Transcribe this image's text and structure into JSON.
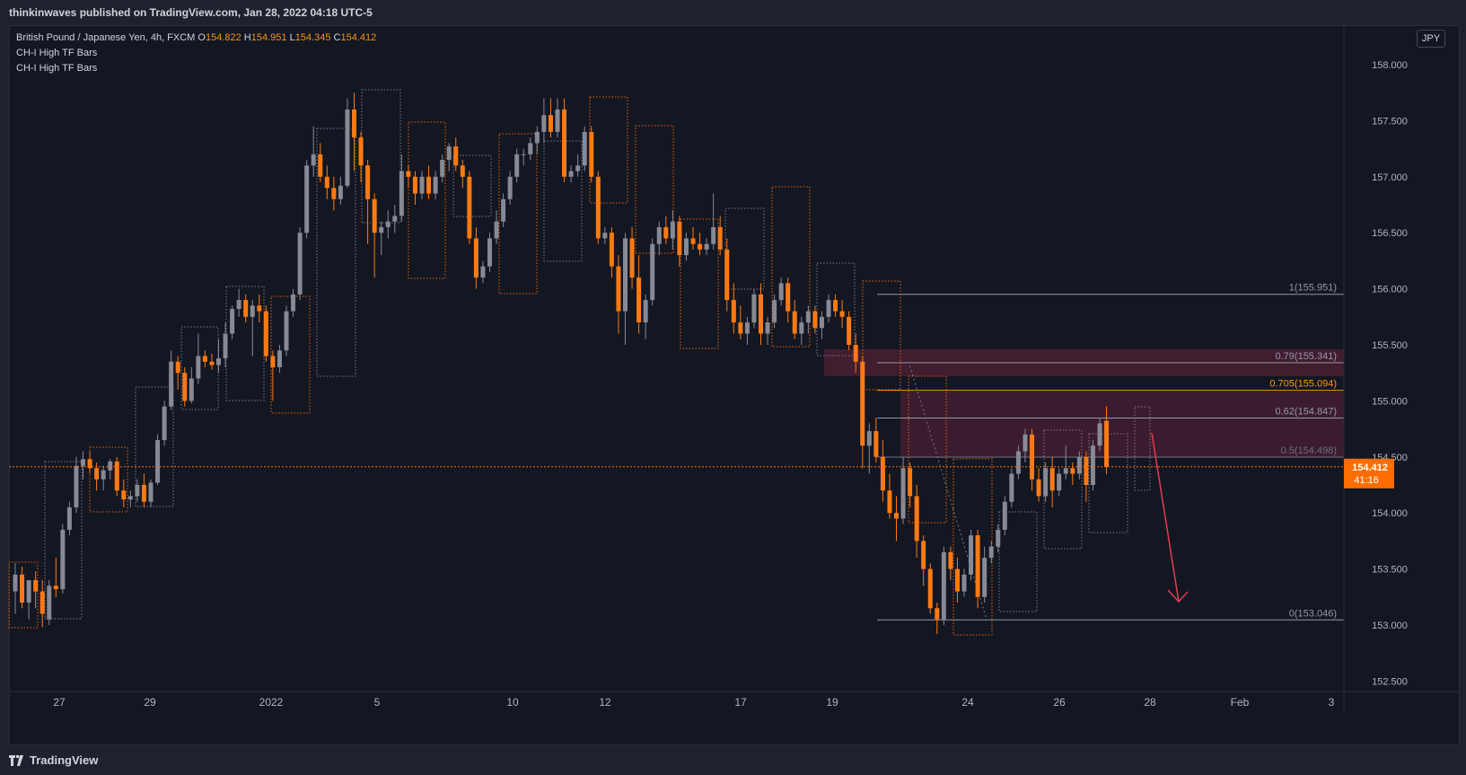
{
  "header": {
    "published_text": "thinkinwaves published on TradingView.com, Jan 28, 2022 04:18 UTC-5"
  },
  "legend": {
    "symbol": "British Pound / Japanese Yen, 4h, FXCM",
    "open_label": "O",
    "open": "154.822",
    "high_label": "H",
    "high": "154.951",
    "low_label": "L",
    "low": "154.345",
    "close_label": "C",
    "close": "154.412",
    "indicators": [
      "CH-I High TF Bars",
      "CH-I High TF Bars"
    ]
  },
  "currency_button": "JPY",
  "price_axis": {
    "labels": [
      "158.000",
      "157.500",
      "157.000",
      "156.500",
      "156.000",
      "155.500",
      "155.000",
      "154.500",
      "154.000",
      "153.500",
      "153.000",
      "152.500"
    ],
    "current_price": "154.412",
    "countdown": "41:16"
  },
  "time_axis": {
    "labels": [
      "27",
      "29",
      "2022",
      "5",
      "10",
      "12",
      "17",
      "19",
      "24",
      "26",
      "28",
      "Feb",
      "3"
    ]
  },
  "fib_levels": [
    {
      "label": "1(155.951)",
      "price": 155.951,
      "color": "#9598a1"
    },
    {
      "label": "0.79(155.341)",
      "price": 155.341,
      "color": "#9598a1"
    },
    {
      "label": "0.705(155.094)",
      "price": 155.094,
      "color": "#ff9800"
    },
    {
      "label": "0.62(154.847)",
      "price": 154.847,
      "color": "#9598a1"
    },
    {
      "label": "0.5(154.498)",
      "price": 154.498,
      "color": "#6b6f7a"
    },
    {
      "label": "0(153.046)",
      "price": 153.046,
      "color": "#9598a1"
    }
  ],
  "footer": {
    "brand": "TradingView"
  },
  "colors": {
    "bull": "#878a94",
    "bear": "#ff7a12",
    "background": "#131722",
    "zone": "#4a1f33",
    "arrow": "#e63950",
    "price_tag": "#ff6d00"
  },
  "chart_data": {
    "type": "candlestick",
    "title": "British Pound / Japanese Yen, 4h, FXCM",
    "ylim": [
      152.4,
      158.3
    ],
    "y_ticks": [
      152.5,
      153.0,
      153.5,
      154.0,
      154.5,
      155.0,
      155.5,
      156.0,
      156.5,
      157.0,
      157.5,
      158.0
    ],
    "x_ticks": [
      "27",
      "29",
      "2022",
      "5",
      "10",
      "12",
      "17",
      "19",
      "24",
      "26",
      "28",
      "Feb",
      "3"
    ],
    "current_price": 154.412,
    "ohlc": [
      [
        153.3,
        153.55,
        153.1,
        153.45
      ],
      [
        153.45,
        153.52,
        153.15,
        153.2
      ],
      [
        153.2,
        153.35,
        153.05,
        153.4
      ],
      [
        153.4,
        153.48,
        153.15,
        153.3
      ],
      [
        153.3,
        153.4,
        152.98,
        153.1
      ],
      [
        153.05,
        153.4,
        153.0,
        153.35
      ],
      [
        153.35,
        153.6,
        153.25,
        153.32
      ],
      [
        153.32,
        153.9,
        153.28,
        153.85
      ],
      [
        153.85,
        154.1,
        153.8,
        154.05
      ],
      [
        154.05,
        154.5,
        154.0,
        154.42
      ],
      [
        154.42,
        154.55,
        154.3,
        154.48
      ],
      [
        154.48,
        154.55,
        154.35,
        154.4
      ],
      [
        154.4,
        154.45,
        154.2,
        154.3
      ],
      [
        154.3,
        154.42,
        154.2,
        154.38
      ],
      [
        154.38,
        154.48,
        154.3,
        154.46
      ],
      [
        154.46,
        154.5,
        154.15,
        154.2
      ],
      [
        154.2,
        154.3,
        154.05,
        154.12
      ],
      [
        154.12,
        154.2,
        154.05,
        154.15
      ],
      [
        154.15,
        154.3,
        154.1,
        154.25
      ],
      [
        154.25,
        154.35,
        154.05,
        154.1
      ],
      [
        154.1,
        154.3,
        154.05,
        154.27
      ],
      [
        154.27,
        154.7,
        154.25,
        154.65
      ],
      [
        154.65,
        155.0,
        154.6,
        154.95
      ],
      [
        154.95,
        155.45,
        154.92,
        155.35
      ],
      [
        155.35,
        155.4,
        155.1,
        155.25
      ],
      [
        155.25,
        155.3,
        154.95,
        155.0
      ],
      [
        155.0,
        155.3,
        154.98,
        155.2
      ],
      [
        155.2,
        155.6,
        155.15,
        155.4
      ],
      [
        155.4,
        155.45,
        155.3,
        155.35
      ],
      [
        155.35,
        155.42,
        155.28,
        155.32
      ],
      [
        155.32,
        155.55,
        155.25,
        155.38
      ],
      [
        155.38,
        155.7,
        155.3,
        155.6
      ],
      [
        155.6,
        155.85,
        155.55,
        155.82
      ],
      [
        155.82,
        156.0,
        155.75,
        155.9
      ],
      [
        155.9,
        155.95,
        155.7,
        155.75
      ],
      [
        155.75,
        155.9,
        155.4,
        155.85
      ],
      [
        155.85,
        155.95,
        155.7,
        155.8
      ],
      [
        155.8,
        155.85,
        155.35,
        155.4
      ],
      [
        155.4,
        155.45,
        155.0,
        155.3
      ],
      [
        155.3,
        155.5,
        155.25,
        155.45
      ],
      [
        155.45,
        155.85,
        155.4,
        155.8
      ],
      [
        155.8,
        156.0,
        155.75,
        155.95
      ],
      [
        155.95,
        156.55,
        155.9,
        156.5
      ],
      [
        156.5,
        157.15,
        156.45,
        157.1
      ],
      [
        157.1,
        157.45,
        157.0,
        157.2
      ],
      [
        157.2,
        157.3,
        156.95,
        157.0
      ],
      [
        157.0,
        157.1,
        156.8,
        156.9
      ],
      [
        156.9,
        157.0,
        156.7,
        156.8
      ],
      [
        156.8,
        157.0,
        156.75,
        156.92
      ],
      [
        156.92,
        157.7,
        156.9,
        157.6
      ],
      [
        157.6,
        157.75,
        157.05,
        157.35
      ],
      [
        157.35,
        157.4,
        156.95,
        157.1
      ],
      [
        157.1,
        157.15,
        156.4,
        156.8
      ],
      [
        156.8,
        156.85,
        156.1,
        156.5
      ],
      [
        156.5,
        156.6,
        156.3,
        156.55
      ],
      [
        156.55,
        156.7,
        156.45,
        156.6
      ],
      [
        156.6,
        156.75,
        156.5,
        156.65
      ],
      [
        156.65,
        157.2,
        156.6,
        157.05
      ],
      [
        157.05,
        157.1,
        156.9,
        157.0
      ],
      [
        157.0,
        157.05,
        156.75,
        156.85
      ],
      [
        156.85,
        157.05,
        156.8,
        157.0
      ],
      [
        157.0,
        157.1,
        156.8,
        156.85
      ],
      [
        156.85,
        157.05,
        156.8,
        157.0
      ],
      [
        157.0,
        157.2,
        156.95,
        157.15
      ],
      [
        157.15,
        157.3,
        157.05,
        157.27
      ],
      [
        157.27,
        157.35,
        157.05,
        157.1
      ],
      [
        157.1,
        157.15,
        156.9,
        157.0
      ],
      [
        157.0,
        157.05,
        156.4,
        156.45
      ],
      [
        156.45,
        156.55,
        156.0,
        156.1
      ],
      [
        156.1,
        156.25,
        156.05,
        156.2
      ],
      [
        156.2,
        156.5,
        156.15,
        156.45
      ],
      [
        156.45,
        156.7,
        156.4,
        156.6
      ],
      [
        156.6,
        156.85,
        156.55,
        156.8
      ],
      [
        156.8,
        157.05,
        156.75,
        157.0
      ],
      [
        157.0,
        157.25,
        156.95,
        157.2
      ],
      [
        157.2,
        157.25,
        157.1,
        157.2
      ],
      [
        157.2,
        157.35,
        157.15,
        157.3
      ],
      [
        157.3,
        157.45,
        157.2,
        157.4
      ],
      [
        157.4,
        157.7,
        157.3,
        157.55
      ],
      [
        157.55,
        157.7,
        157.35,
        157.4
      ],
      [
        157.4,
        157.7,
        157.35,
        157.6
      ],
      [
        157.6,
        157.7,
        156.95,
        157.0
      ],
      [
        157.0,
        157.1,
        156.95,
        157.05
      ],
      [
        157.05,
        157.2,
        157.0,
        157.1
      ],
      [
        157.1,
        157.45,
        157.05,
        157.4
      ],
      [
        157.4,
        157.45,
        156.95,
        157.0
      ],
      [
        157.0,
        157.05,
        156.4,
        156.45
      ],
      [
        156.45,
        156.55,
        156.4,
        156.5
      ],
      [
        156.5,
        156.55,
        156.1,
        156.2
      ],
      [
        156.2,
        156.3,
        155.6,
        155.8
      ],
      [
        155.8,
        156.5,
        155.5,
        156.45
      ],
      [
        156.45,
        156.55,
        156.0,
        156.1
      ],
      [
        156.1,
        156.3,
        155.6,
        155.7
      ],
      [
        155.7,
        155.95,
        155.55,
        155.9
      ],
      [
        155.9,
        156.45,
        155.85,
        156.4
      ],
      [
        156.4,
        156.6,
        156.3,
        156.55
      ],
      [
        156.55,
        156.65,
        156.4,
        156.45
      ],
      [
        156.45,
        156.7,
        156.35,
        156.6
      ],
      [
        156.6,
        156.65,
        156.2,
        156.3
      ],
      [
        156.3,
        156.5,
        156.25,
        156.45
      ],
      [
        156.45,
        156.55,
        156.35,
        156.4
      ],
      [
        156.4,
        156.5,
        156.3,
        156.35
      ],
      [
        156.35,
        156.45,
        156.3,
        156.4
      ],
      [
        156.4,
        156.85,
        156.35,
        156.55
      ],
      [
        156.55,
        156.65,
        156.3,
        156.35
      ],
      [
        156.35,
        156.45,
        155.8,
        155.9
      ],
      [
        155.9,
        156.05,
        155.6,
        155.7
      ],
      [
        155.7,
        155.85,
        155.55,
        155.6
      ],
      [
        155.6,
        155.75,
        155.5,
        155.7
      ],
      [
        155.7,
        156.0,
        155.65,
        155.95
      ],
      [
        155.95,
        156.05,
        155.5,
        155.6
      ],
      [
        155.6,
        155.75,
        155.5,
        155.7
      ],
      [
        155.7,
        155.95,
        155.65,
        155.9
      ],
      [
        155.9,
        156.1,
        155.85,
        156.05
      ],
      [
        156.05,
        156.1,
        155.7,
        155.8
      ],
      [
        155.8,
        155.9,
        155.55,
        155.6
      ],
      [
        155.6,
        155.75,
        155.5,
        155.7
      ],
      [
        155.7,
        155.85,
        155.6,
        155.8
      ],
      [
        155.8,
        155.85,
        155.6,
        155.65
      ],
      [
        155.65,
        155.8,
        155.55,
        155.75
      ],
      [
        155.75,
        155.95,
        155.7,
        155.9
      ],
      [
        155.9,
        155.95,
        155.75,
        155.8
      ],
      [
        155.8,
        155.9,
        155.65,
        155.75
      ],
      [
        155.75,
        155.8,
        155.45,
        155.5
      ],
      [
        155.5,
        155.6,
        155.25,
        155.35
      ],
      [
        155.35,
        155.4,
        154.4,
        154.6
      ],
      [
        154.6,
        154.8,
        154.35,
        154.73
      ],
      [
        154.73,
        154.85,
        154.45,
        154.5
      ],
      [
        154.5,
        154.65,
        154.1,
        154.2
      ],
      [
        154.2,
        154.35,
        153.95,
        154.0
      ],
      [
        154.0,
        154.15,
        153.75,
        153.95
      ],
      [
        153.95,
        154.5,
        153.9,
        154.4
      ],
      [
        154.4,
        154.45,
        154.05,
        154.15
      ],
      [
        154.15,
        154.25,
        153.6,
        153.75
      ],
      [
        153.75,
        153.8,
        153.35,
        153.5
      ],
      [
        153.5,
        153.55,
        153.1,
        153.15
      ],
      [
        153.15,
        153.2,
        152.92,
        153.05
      ],
      [
        153.05,
        153.7,
        153.0,
        153.65
      ],
      [
        153.65,
        153.7,
        153.4,
        153.5
      ],
      [
        153.5,
        153.6,
        153.2,
        153.3
      ],
      [
        153.3,
        153.5,
        153.25,
        153.45
      ],
      [
        153.45,
        153.85,
        153.4,
        153.8
      ],
      [
        153.8,
        153.85,
        153.15,
        153.25
      ],
      [
        153.25,
        153.7,
        153.2,
        153.6
      ],
      [
        153.6,
        153.75,
        153.55,
        153.7
      ],
      [
        153.7,
        153.9,
        153.65,
        153.85
      ],
      [
        153.85,
        154.15,
        153.8,
        154.1
      ],
      [
        154.1,
        154.4,
        154.05,
        154.35
      ],
      [
        154.35,
        154.6,
        154.3,
        154.55
      ],
      [
        154.55,
        154.75,
        154.45,
        154.7
      ],
      [
        154.7,
        154.75,
        154.2,
        154.3
      ],
      [
        154.3,
        154.4,
        154.1,
        154.15
      ],
      [
        154.15,
        154.45,
        154.1,
        154.4
      ],
      [
        154.4,
        154.5,
        154.05,
        154.2
      ],
      [
        154.2,
        154.4,
        154.15,
        154.35
      ],
      [
        154.35,
        154.6,
        154.3,
        154.4
      ],
      [
        154.4,
        154.45,
        154.25,
        154.35
      ],
      [
        154.35,
        154.55,
        154.3,
        154.5
      ],
      [
        154.5,
        154.55,
        154.1,
        154.25
      ],
      [
        154.25,
        154.65,
        154.2,
        154.6
      ],
      [
        154.6,
        154.85,
        154.55,
        154.8
      ],
      [
        154.822,
        154.951,
        154.345,
        154.412
      ]
    ]
  }
}
